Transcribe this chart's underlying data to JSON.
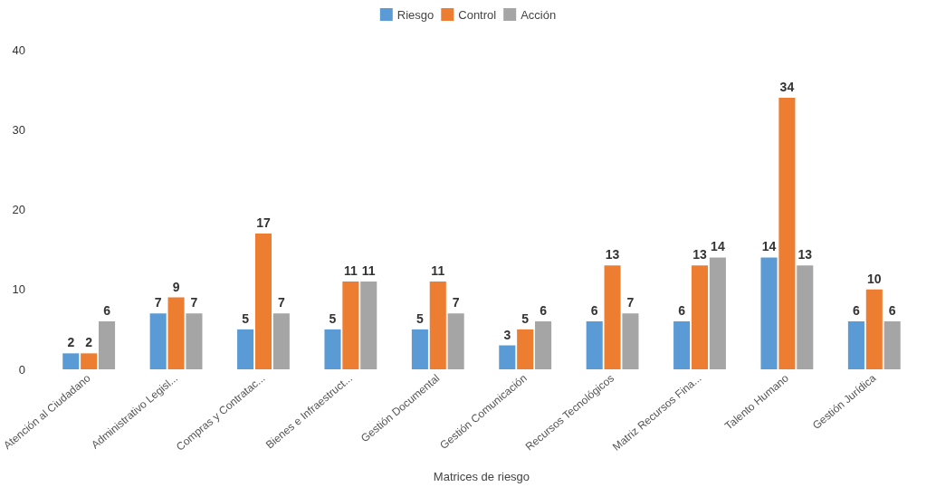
{
  "chart_data": {
    "type": "bar",
    "xlabel": "Matrices de riesgo",
    "categories": [
      "Atención al Ciudadano",
      "Administrativo Legisl...",
      "Compras y Contratac...",
      "Bienes e Infraestruct...",
      "Gestión Documental",
      "Gestión Comunicación",
      "Recursos Tecnológicos",
      "Matriz Recursos Fina...",
      "Talento Humano",
      "Gestión Jurídica"
    ],
    "series": [
      {
        "name": "Riesgo",
        "color": "#5b9bd5",
        "values": [
          2,
          7,
          5,
          5,
          5,
          3,
          6,
          6,
          14,
          6
        ]
      },
      {
        "name": "Control",
        "color": "#ed7d31",
        "values": [
          2,
          9,
          17,
          11,
          11,
          5,
          13,
          13,
          34,
          10
        ]
      },
      {
        "name": "Acción",
        "color": "#a5a5a5",
        "values": [
          6,
          7,
          7,
          11,
          7,
          6,
          7,
          14,
          13,
          6
        ]
      }
    ],
    "ylim": [
      0,
      40
    ],
    "yticks": [
      0,
      10,
      20,
      30,
      40
    ],
    "grid": false,
    "legend": "top",
    "data_labels": true
  }
}
